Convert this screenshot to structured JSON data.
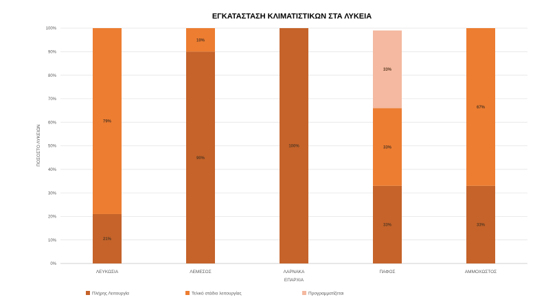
{
  "chart_data": {
    "type": "bar",
    "stacked": true,
    "title": "ΕΓΚΑΤΑΣΤΑΣΗ ΚΛΙΜΑΤΙΣΤΙΚΩΝ ΣΤΑ ΛΥΚΕΙΑ",
    "xlabel": "ΕΠΑΡΧΙΑ",
    "ylabel": "ΠΟΣΟΣΤΟ ΛΥΚΕΙΩΝ",
    "ylim": [
      0,
      100
    ],
    "yticks": [
      "0%",
      "10%",
      "20%",
      "30%",
      "40%",
      "50%",
      "60%",
      "70%",
      "80%",
      "90%",
      "100%"
    ],
    "grid": true,
    "legend_position": "bottom",
    "categories": [
      "ΛΕΥΚΩΣΙΑ",
      "ΛΕΜΕΣΟΣ",
      "ΛΑΡΝΑΚΑ",
      "ΠΑΦΟΣ",
      "ΑΜΜΟΧΩΣΤΟΣ"
    ],
    "series": [
      {
        "name": "Πλήρης Λειτουργία",
        "color": "#c5632a",
        "values": [
          21,
          90,
          100,
          33,
          33
        ],
        "labels": [
          "21%",
          "90%",
          "100%",
          "33%",
          "33%"
        ]
      },
      {
        "name": "Τελικό στάδιο λειτουργίας",
        "color": "#ed7d31",
        "values": [
          79,
          10,
          0,
          33,
          67
        ],
        "labels": [
          "79%",
          "10%",
          "",
          "33%",
          "67%"
        ]
      },
      {
        "name": "Προγραμματίζεται",
        "color": "#f4b9a0",
        "values": [
          0,
          0,
          0,
          33,
          0
        ],
        "labels": [
          "",
          "",
          "",
          "33%",
          ""
        ]
      }
    ]
  }
}
